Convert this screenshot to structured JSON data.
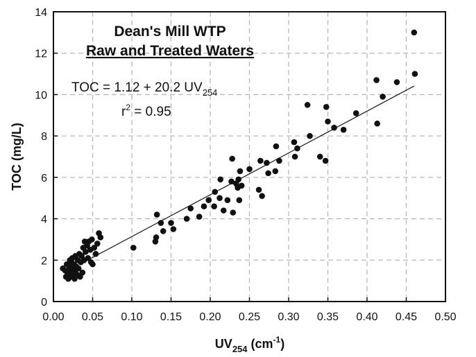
{
  "chart_data": {
    "type": "scatter",
    "title": "Dean's Mill WTP",
    "subtitle": "Raw and Treated Waters",
    "xlabel": {
      "main": "UV",
      "sub": "254",
      "unit_pre": " (cm",
      "unit_sup": "-1",
      "unit_post": ")"
    },
    "ylabel": "TOC (mg/L)",
    "xlim": [
      0,
      0.5
    ],
    "ylim": [
      0,
      14
    ],
    "xticks": [
      "0.00",
      "0.05",
      "0.10",
      "0.15",
      "0.20",
      "0.25",
      "0.30",
      "0.35",
      "0.40",
      "0.45",
      "0.50"
    ],
    "yticks": [
      "0",
      "2",
      "4",
      "6",
      "8",
      "10",
      "12",
      "14"
    ],
    "grid": true,
    "annotation": {
      "equation_main": "TOC = 1.12 + 20.2 UV",
      "equation_sub": "254",
      "r2_pre": "r",
      "r2_sup": "2",
      "r2_post": " = 0.95"
    },
    "fit": {
      "intercept": 1.12,
      "slope": 20.2,
      "x_range": [
        0.04,
        0.46
      ]
    },
    "points": [
      {
        "x": 0.012,
        "y": 1.6
      },
      {
        "x": 0.015,
        "y": 1.5
      },
      {
        "x": 0.016,
        "y": 1.2
      },
      {
        "x": 0.017,
        "y": 1.8
      },
      {
        "x": 0.018,
        "y": 1.4
      },
      {
        "x": 0.019,
        "y": 1.1
      },
      {
        "x": 0.02,
        "y": 1.7
      },
      {
        "x": 0.021,
        "y": 2.0
      },
      {
        "x": 0.021,
        "y": 1.3
      },
      {
        "x": 0.022,
        "y": 1.6
      },
      {
        "x": 0.023,
        "y": 1.9
      },
      {
        "x": 0.024,
        "y": 1.2
      },
      {
        "x": 0.024,
        "y": 2.1
      },
      {
        "x": 0.025,
        "y": 1.5
      },
      {
        "x": 0.026,
        "y": 1.8
      },
      {
        "x": 0.027,
        "y": 1.1
      },
      {
        "x": 0.028,
        "y": 2.2
      },
      {
        "x": 0.028,
        "y": 1.4
      },
      {
        "x": 0.029,
        "y": 1.7
      },
      {
        "x": 0.03,
        "y": 1.3
      },
      {
        "x": 0.031,
        "y": 2.0
      },
      {
        "x": 0.032,
        "y": 1.6
      },
      {
        "x": 0.033,
        "y": 2.3
      },
      {
        "x": 0.034,
        "y": 1.2
      },
      {
        "x": 0.035,
        "y": 1.9
      },
      {
        "x": 0.036,
        "y": 2.2
      },
      {
        "x": 0.037,
        "y": 1.4
      },
      {
        "x": 0.038,
        "y": 2.6
      },
      {
        "x": 0.039,
        "y": 2.0
      },
      {
        "x": 0.04,
        "y": 2.9
      },
      {
        "x": 0.041,
        "y": 2.4
      },
      {
        "x": 0.043,
        "y": 2.7
      },
      {
        "x": 0.044,
        "y": 2.1
      },
      {
        "x": 0.045,
        "y": 2.9
      },
      {
        "x": 0.047,
        "y": 2.5
      },
      {
        "x": 0.048,
        "y": 1.9
      },
      {
        "x": 0.049,
        "y": 3.0
      },
      {
        "x": 0.05,
        "y": 1.8
      },
      {
        "x": 0.052,
        "y": 2.6
      },
      {
        "x": 0.054,
        "y": 2.3
      },
      {
        "x": 0.056,
        "y": 2.8
      },
      {
        "x": 0.058,
        "y": 3.3
      },
      {
        "x": 0.06,
        "y": 3.1
      },
      {
        "x": 0.102,
        "y": 2.6
      },
      {
        "x": 0.13,
        "y": 2.9
      },
      {
        "x": 0.131,
        "y": 3.1
      },
      {
        "x": 0.132,
        "y": 4.2
      },
      {
        "x": 0.137,
        "y": 3.8
      },
      {
        "x": 0.14,
        "y": 3.4
      },
      {
        "x": 0.15,
        "y": 3.8
      },
      {
        "x": 0.153,
        "y": 3.5
      },
      {
        "x": 0.17,
        "y": 4.0
      },
      {
        "x": 0.175,
        "y": 4.5
      },
      {
        "x": 0.186,
        "y": 4.1
      },
      {
        "x": 0.192,
        "y": 4.6
      },
      {
        "x": 0.198,
        "y": 4.9
      },
      {
        "x": 0.205,
        "y": 4.6
      },
      {
        "x": 0.206,
        "y": 5.3
      },
      {
        "x": 0.212,
        "y": 5.0
      },
      {
        "x": 0.213,
        "y": 5.9
      },
      {
        "x": 0.217,
        "y": 4.4
      },
      {
        "x": 0.222,
        "y": 4.9
      },
      {
        "x": 0.227,
        "y": 5.8
      },
      {
        "x": 0.228,
        "y": 6.9
      },
      {
        "x": 0.229,
        "y": 4.3
      },
      {
        "x": 0.233,
        "y": 5.7
      },
      {
        "x": 0.235,
        "y": 5.5
      },
      {
        "x": 0.236,
        "y": 5.9
      },
      {
        "x": 0.237,
        "y": 4.9
      },
      {
        "x": 0.238,
        "y": 6.3
      },
      {
        "x": 0.24,
        "y": 5.6
      },
      {
        "x": 0.25,
        "y": 6.4
      },
      {
        "x": 0.262,
        "y": 5.4
      },
      {
        "x": 0.264,
        "y": 6.8
      },
      {
        "x": 0.266,
        "y": 5.1
      },
      {
        "x": 0.272,
        "y": 6.7
      },
      {
        "x": 0.274,
        "y": 6.2
      },
      {
        "x": 0.283,
        "y": 6.3
      },
      {
        "x": 0.284,
        "y": 7.5
      },
      {
        "x": 0.288,
        "y": 6.8
      },
      {
        "x": 0.307,
        "y": 7.7
      },
      {
        "x": 0.308,
        "y": 7.0
      },
      {
        "x": 0.311,
        "y": 7.4
      },
      {
        "x": 0.324,
        "y": 9.5
      },
      {
        "x": 0.327,
        "y": 8.0
      },
      {
        "x": 0.34,
        "y": 7.0
      },
      {
        "x": 0.347,
        "y": 6.8
      },
      {
        "x": 0.348,
        "y": 9.4
      },
      {
        "x": 0.35,
        "y": 8.7
      },
      {
        "x": 0.358,
        "y": 8.4
      },
      {
        "x": 0.37,
        "y": 8.3
      },
      {
        "x": 0.386,
        "y": 9.1
      },
      {
        "x": 0.412,
        "y": 10.7
      },
      {
        "x": 0.413,
        "y": 8.6
      },
      {
        "x": 0.42,
        "y": 9.9
      },
      {
        "x": 0.438,
        "y": 10.6
      },
      {
        "x": 0.46,
        "y": 13.0
      },
      {
        "x": 0.461,
        "y": 11.0
      }
    ]
  }
}
